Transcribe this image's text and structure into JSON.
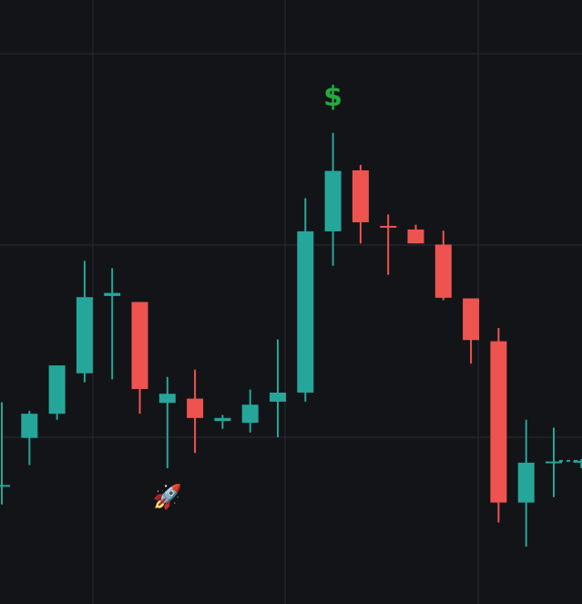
{
  "chart_data": {
    "type": "candlestick",
    "title": "",
    "xlabel": "",
    "ylabel": "",
    "grid": true,
    "colors": {
      "background": "#131418",
      "grid": "#23252b",
      "up": "#26a69a",
      "down": "#ef5350",
      "dollar": "#22ab3f"
    },
    "ylim": [
      0,
      1000
    ],
    "candles": [
      {
        "open": 195,
        "high": 334,
        "low": 165,
        "close": 197
      },
      {
        "open": 195,
        "high": 334,
        "low": 165,
        "close": 197
      },
      {
        "open": 275,
        "high": 320,
        "low": 230,
        "close": 315
      },
      {
        "open": 315,
        "high": 395,
        "low": 305,
        "close": 395
      },
      {
        "open": 382,
        "high": 568,
        "low": 367,
        "close": 508
      },
      {
        "open": 510,
        "high": 556,
        "low": 372,
        "close": 515
      },
      {
        "open": 500,
        "high": 500,
        "low": 315,
        "close": 356
      },
      {
        "open": 333,
        "high": 376,
        "low": 225,
        "close": 348
      },
      {
        "open": 340,
        "high": 388,
        "low": 250,
        "close": 308
      },
      {
        "open": 303,
        "high": 313,
        "low": 290,
        "close": 308
      },
      {
        "open": 300,
        "high": 355,
        "low": 284,
        "close": 330
      },
      {
        "open": 335,
        "high": 438,
        "low": 276,
        "close": 350
      },
      {
        "open": 350,
        "high": 672,
        "low": 335,
        "close": 617
      },
      {
        "open": 617,
        "high": 780,
        "low": 560,
        "close": 717
      },
      {
        "open": 718,
        "high": 727,
        "low": 597,
        "close": 632
      },
      {
        "open": 626,
        "high": 645,
        "low": 545,
        "close": 625
      },
      {
        "open": 620,
        "high": 628,
        "low": 597,
        "close": 597
      },
      {
        "open": 595,
        "high": 618,
        "low": 503,
        "close": 507
      },
      {
        "open": 506,
        "high": 506,
        "low": 398,
        "close": 437
      },
      {
        "open": 435,
        "high": 457,
        "low": 135,
        "close": 168
      },
      {
        "open": 168,
        "high": 305,
        "low": 95,
        "close": 234
      },
      {
        "open": 234,
        "high": 292,
        "low": 177,
        "close": 236
      },
      {
        "open": 236,
        "high": 240,
        "low": 225,
        "close": 237
      }
    ],
    "markers": [
      {
        "candle": 13,
        "position": "above",
        "text": "$"
      },
      {
        "candle": 7,
        "position": "below",
        "text": "🚀"
      }
    ]
  }
}
